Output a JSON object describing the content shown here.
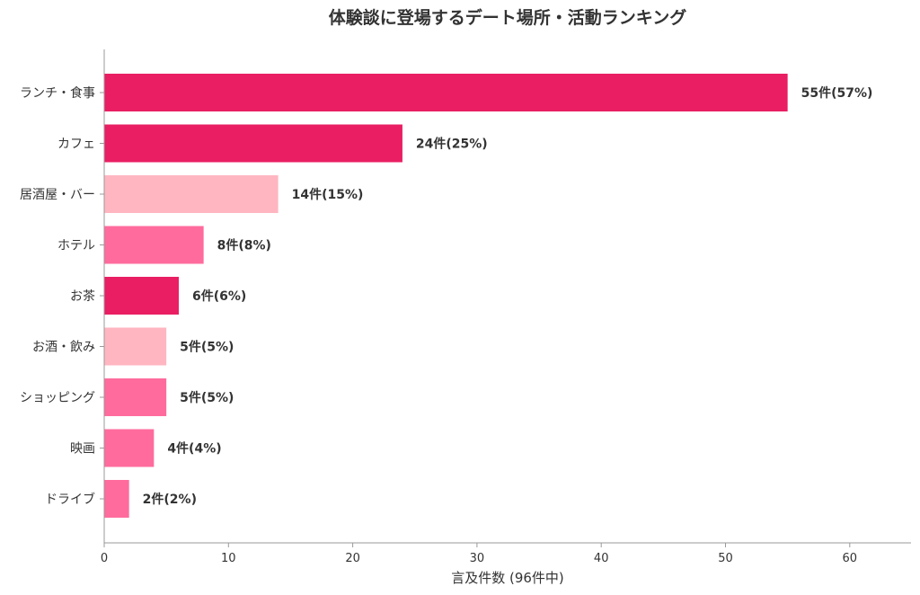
{
  "chart_data": {
    "type": "bar",
    "orientation": "horizontal",
    "title": "体験談に登場するデート場所・活動ランキング",
    "xlabel": "言及件数 (96件中)",
    "ylabel": "",
    "xlim": [
      0,
      65
    ],
    "xticks": [
      0,
      10,
      20,
      30,
      40,
      50,
      60
    ],
    "grid": false,
    "categories": [
      "ランチ・食事",
      "カフェ",
      "居酒屋・バー",
      "ホテル",
      "お茶",
      "お酒・飲み",
      "ショッピング",
      "映画",
      "ドライブ"
    ],
    "values": [
      55,
      24,
      14,
      8,
      6,
      5,
      5,
      4,
      2
    ],
    "data_labels": [
      "55件(57%)",
      "24件(25%)",
      "14件(15%)",
      "8件(8%)",
      "6件(6%)",
      "5件(5%)",
      "5件(5%)",
      "4件(4%)",
      "2件(2%)"
    ],
    "colors": [
      "#e91e63",
      "#e91e63",
      "#ffb6c1",
      "#ff6b9d",
      "#e91e63",
      "#ffb6c1",
      "#ff6b9d",
      "#ff6b9d",
      "#ff6b9d"
    ]
  }
}
